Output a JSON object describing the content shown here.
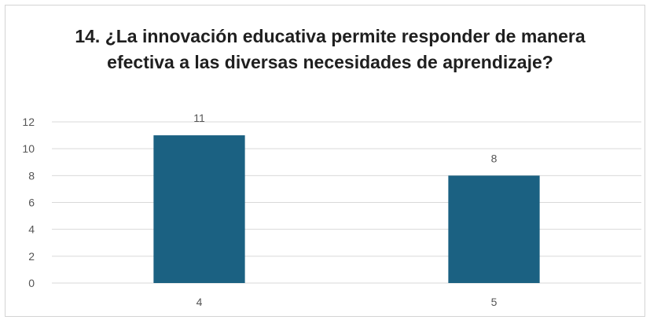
{
  "chart_data": {
    "type": "bar",
    "title": "14.  ¿La innovación educativa permite responder de manera efectiva a las diversas necesidades de aprendizaje?",
    "categories": [
      "4",
      "5"
    ],
    "values": [
      11,
      8
    ],
    "xlabel": "",
    "ylabel": "",
    "ylim": [
      0,
      12
    ],
    "yticks": [
      0,
      2,
      4,
      6,
      8,
      10,
      12
    ],
    "grid": true,
    "legend": "none",
    "bar_color": "#1b6182",
    "grid_color": "#d9d9d9"
  }
}
